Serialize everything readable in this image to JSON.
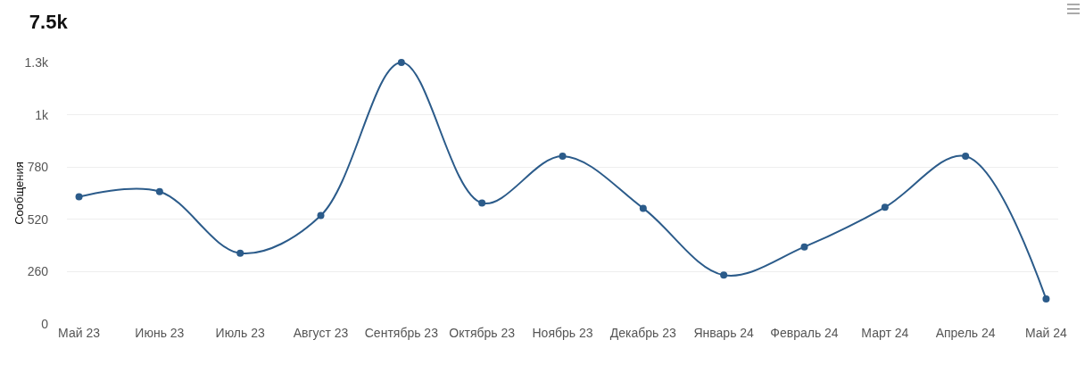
{
  "chart_data": {
    "type": "line",
    "title": "7.5k",
    "ylabel": "Сообщения",
    "categories": [
      "Май 23",
      "Июнь 23",
      "Июль 23",
      "Август 23",
      "Сентябрь 23",
      "Октябрь 23",
      "Ноябрь 23",
      "Декабрь 23",
      "Январь 24",
      "Февраль 24",
      "Март 24",
      "Апрель 24",
      "Май 24"
    ],
    "series": [
      {
        "color": "#2b5b8a",
        "values": [
          632,
          658,
          352,
          539,
          1300,
          601,
          834,
          575,
          243,
          383,
          580,
          834,
          124
        ]
      }
    ],
    "ylim": [
      0,
      1300
    ],
    "yticks": [
      0,
      260,
      520,
      780,
      {
        "value": 1040,
        "label": "1k"
      },
      {
        "value": 1300,
        "label": "1.3k"
      }
    ],
    "grid": "y",
    "marker": "circle",
    "line_style": "solid"
  }
}
